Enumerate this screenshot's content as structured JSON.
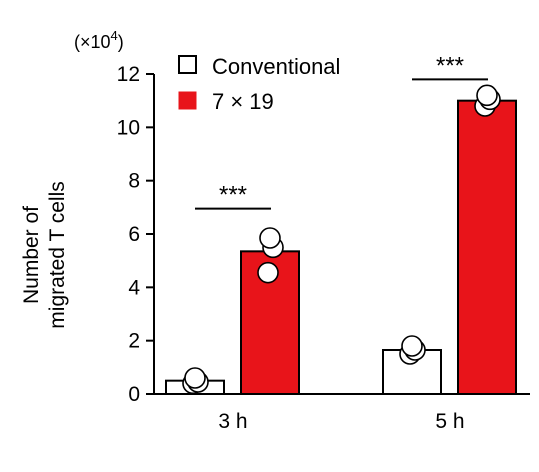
{
  "chart_data": {
    "type": "bar",
    "scale_note": "(×10",
    "scale_exp": "4",
    "scale_close": ")",
    "ylabel_line1": "Number of",
    "ylabel_line2": "migrated T cells",
    "ylim": [
      0,
      12
    ],
    "yticks": [
      "0",
      "2",
      "4",
      "6",
      "8",
      "10",
      "12"
    ],
    "categories": [
      "3 h",
      "5 h"
    ],
    "series": [
      {
        "name": "Conventional",
        "color": "#ffffff",
        "values": [
          0.5,
          1.65
        ],
        "points": [
          [
            0.4,
            0.45,
            0.6
          ],
          [
            1.5,
            1.65,
            1.8
          ]
        ]
      },
      {
        "name": "7 × 19",
        "color": "#e8141a",
        "values": [
          5.35,
          11.0
        ],
        "points": [
          [
            4.55,
            5.5,
            5.85
          ],
          [
            10.8,
            11.05,
            11.2
          ]
        ]
      }
    ],
    "significance": [
      "***",
      "***"
    ],
    "legend_position": "top-left",
    "grid": false
  }
}
